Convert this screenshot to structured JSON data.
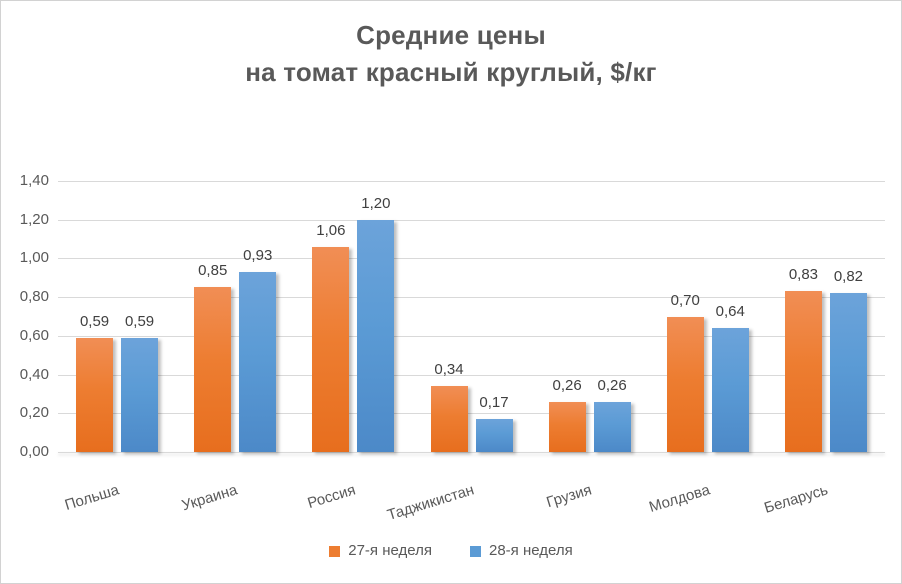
{
  "title_lines": [
    "Средние цены",
    "на томат красный круглый, $/кг"
  ],
  "chart_data": {
    "type": "bar",
    "title": "Средние цены на томат красный круглый, $/кг",
    "categories": [
      "Польша",
      "Украина",
      "Россия",
      "Таджикистан",
      "Грузия",
      "Молдова",
      "Беларусь"
    ],
    "series": [
      {
        "name": "27-я неделя",
        "color": "#ED7D31",
        "values": [
          0.59,
          0.85,
          1.06,
          0.34,
          0.26,
          0.7,
          0.83
        ],
        "labels": [
          "0,59",
          "0,85",
          "1,06",
          "0,34",
          "0,26",
          "0,70",
          "0,83"
        ]
      },
      {
        "name": "28-я неделя",
        "color": "#5B9BD5",
        "values": [
          0.59,
          0.93,
          1.2,
          0.17,
          0.26,
          0.64,
          0.82
        ],
        "labels": [
          "0,59",
          "0,93",
          "1,20",
          "0,17",
          "0,26",
          "0,64",
          "0,82"
        ]
      }
    ],
    "ylim": [
      0,
      1.4
    ],
    "yticks": [
      0,
      0.2,
      0.4,
      0.6,
      0.8,
      1.0,
      1.2,
      1.4
    ],
    "ytick_labels": [
      "0,00",
      "0,20",
      "0,40",
      "0,60",
      "0,80",
      "1,00",
      "1,20",
      "1,40"
    ],
    "grid": true,
    "legend_position": "bottom"
  },
  "colors": {
    "series1": "#ED7D31",
    "series2": "#5B9BD5",
    "title_text": "#595959",
    "axis_text": "#595959",
    "data_label_text": "#404040",
    "gridline": "#D9D9D9",
    "border": "#D2D2D2"
  }
}
